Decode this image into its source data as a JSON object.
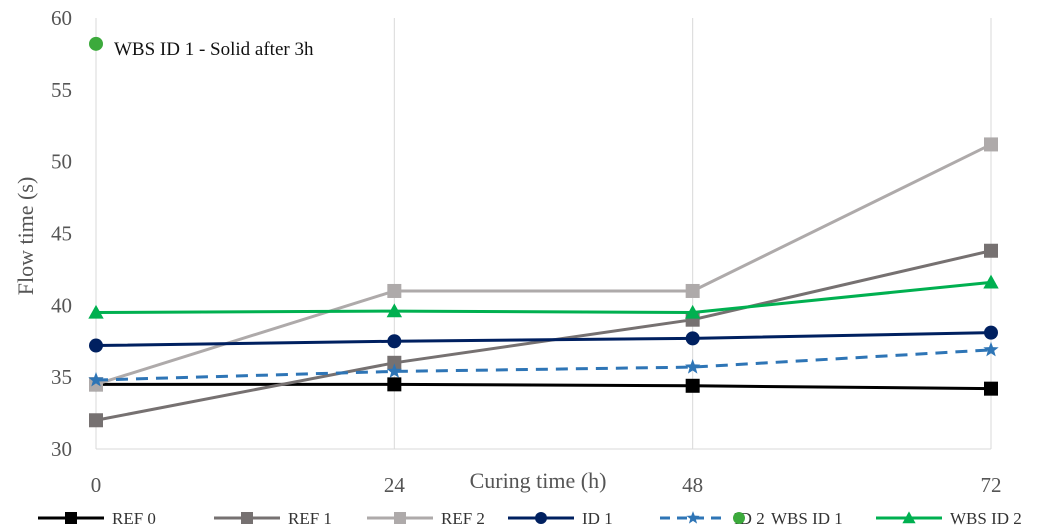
{
  "chart_data": {
    "type": "line",
    "xlabel": "Curing time (h)",
    "ylabel": "Flow time (s)",
    "x": [
      0,
      24,
      48,
      72
    ],
    "xlim": [
      0,
      72
    ],
    "ylim": [
      30,
      60
    ],
    "yticks": [
      30,
      35,
      40,
      45,
      50,
      55,
      60
    ],
    "xticks": [
      0,
      24,
      48,
      72
    ],
    "grid": "vertical",
    "legend_position": "bottom",
    "annotation": "WBS ID 1 - Solid after 3h",
    "series": [
      {
        "name": "REF 0",
        "values": [
          34.5,
          34.5,
          34.4,
          34.2
        ],
        "color": "#000000",
        "marker": "square",
        "dash": "solid"
      },
      {
        "name": "REF 1",
        "values": [
          32.0,
          36.0,
          39.0,
          43.8
        ],
        "color": "#767171",
        "marker": "square",
        "dash": "solid"
      },
      {
        "name": "REF 2",
        "values": [
          34.5,
          41.0,
          41.0,
          51.2
        ],
        "color": "#AEAAAA",
        "marker": "square",
        "dash": "solid"
      },
      {
        "name": "ID 1",
        "values": [
          37.2,
          37.5,
          37.7,
          38.1
        ],
        "color": "#002060",
        "marker": "circle",
        "dash": "solid"
      },
      {
        "name": "ID 2",
        "values": [
          34.8,
          35.4,
          35.7,
          36.9
        ],
        "color": "#2E75B6",
        "marker": "star",
        "dash": "dashed"
      },
      {
        "name": "WBS ID 1",
        "values": [
          58.2,
          null,
          null,
          null
        ],
        "color": "#3CAA3C",
        "marker": "circle",
        "dash": "none"
      },
      {
        "name": "WBS ID 2",
        "values": [
          39.5,
          39.6,
          39.5,
          41.6
        ],
        "color": "#00B050",
        "marker": "triangle",
        "dash": "solid"
      }
    ]
  }
}
